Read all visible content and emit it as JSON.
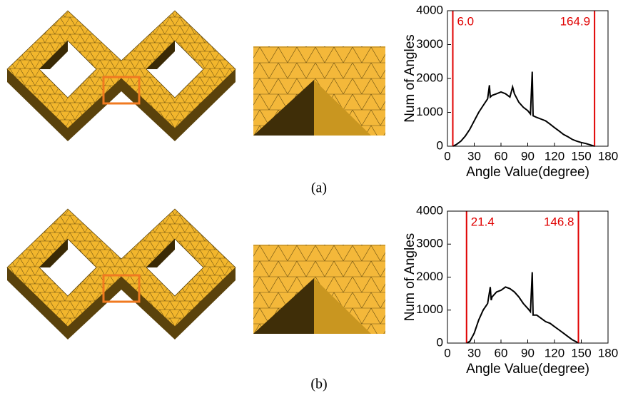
{
  "chart_data": [
    {
      "type": "line",
      "xlabel": "Angle Value(degree)",
      "ylabel": "Num of Angles",
      "xlim": [
        0,
        180
      ],
      "ylim": [
        0,
        4000
      ],
      "xticks": [
        0,
        30,
        60,
        90,
        120,
        150,
        180
      ],
      "yticks": [
        0,
        1000,
        2000,
        3000,
        4000
      ],
      "color": "#000000",
      "x": [
        6,
        10,
        15,
        20,
        25,
        30,
        35,
        40,
        45,
        47,
        48,
        50,
        55,
        60,
        65,
        70,
        73,
        75,
        80,
        85,
        90,
        93,
        95,
        96,
        100,
        105,
        110,
        115,
        120,
        125,
        130,
        135,
        140,
        145,
        150,
        155,
        160,
        165
      ],
      "values": [
        0,
        50,
        150,
        300,
        500,
        750,
        1000,
        1200,
        1400,
        1800,
        1450,
        1500,
        1550,
        1600,
        1550,
        1450,
        1750,
        1550,
        1300,
        1150,
        1050,
        950,
        2200,
        900,
        850,
        800,
        750,
        650,
        550,
        450,
        350,
        280,
        200,
        150,
        110,
        80,
        40,
        0
      ],
      "markers": [
        {
          "value": 6.0,
          "label": "6.0"
        },
        {
          "value": 164.9,
          "label": "164.9"
        }
      ],
      "marker_color": "#e00000"
    },
    {
      "type": "line",
      "xlabel": "Angle Value(degree)",
      "ylabel": "Num of Angles",
      "xlim": [
        0,
        180
      ],
      "ylim": [
        0,
        4000
      ],
      "xticks": [
        0,
        30,
        60,
        90,
        120,
        150,
        180
      ],
      "yticks": [
        0,
        1000,
        2000,
        3000,
        4000
      ],
      "color": "#000000",
      "x": [
        21.4,
        25,
        30,
        35,
        40,
        45,
        48,
        49,
        50,
        55,
        60,
        65,
        70,
        75,
        80,
        85,
        90,
        93,
        95,
        96,
        100,
        105,
        110,
        115,
        120,
        125,
        130,
        135,
        140,
        145,
        147
      ],
      "values": [
        0,
        50,
        300,
        700,
        1000,
        1200,
        1700,
        1300,
        1400,
        1550,
        1600,
        1700,
        1650,
        1550,
        1400,
        1200,
        1050,
        950,
        2150,
        850,
        850,
        750,
        650,
        600,
        500,
        400,
        300,
        200,
        100,
        30,
        0
      ],
      "markers": [
        {
          "value": 21.4,
          "label": "21.4"
        },
        {
          "value": 146.8,
          "label": "146.8"
        }
      ],
      "marker_color": "#e00000"
    }
  ],
  "captions": [
    "(a)",
    "(b)"
  ]
}
